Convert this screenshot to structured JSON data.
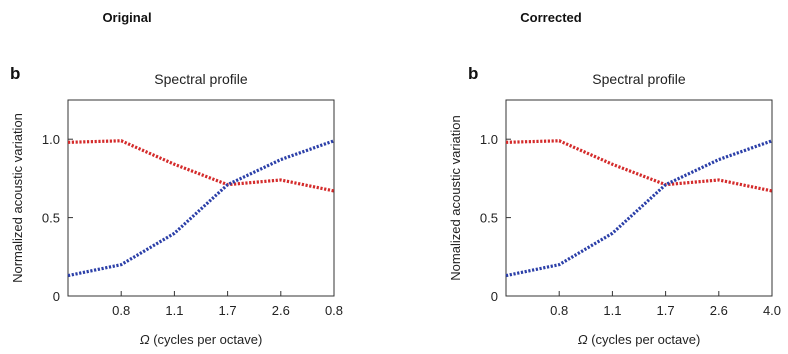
{
  "panels": [
    {
      "heading": "Original",
      "letter": "b",
      "chart_data": {
        "type": "line",
        "title": "Spectral profile",
        "xlabel": "(cycles per octave)",
        "xlabel_symbol": "Ω",
        "ylabel": "Normalized acoustic variation",
        "categories": [
          "",
          "0.8",
          "1.1",
          "1.7",
          "2.6",
          "0.8"
        ],
        "yticks": [
          "0",
          "0.5",
          "1.0"
        ],
        "ytick_values": [
          0,
          0.5,
          1.0
        ],
        "ylim": [
          0,
          1.25
        ],
        "series": [
          {
            "color": "#d42b2b",
            "values": [
              0.98,
              0.99,
              0.84,
              0.71,
              0.74,
              0.67
            ]
          },
          {
            "color": "#2b3fa8",
            "values": [
              0.13,
              0.2,
              0.4,
              0.71,
              0.87,
              0.99
            ]
          }
        ]
      }
    },
    {
      "heading": "Corrected",
      "letter": "b",
      "chart_data": {
        "type": "line",
        "title": "Spectral profile",
        "xlabel": "(cycles per octave)",
        "xlabel_symbol": "Ω",
        "ylabel": "Nomalized acoustic variation",
        "categories": [
          "",
          "0.8",
          "1.1",
          "1.7",
          "2.6",
          "4.0"
        ],
        "yticks": [
          "0",
          "0.5",
          "1.0"
        ],
        "ytick_values": [
          0,
          0.5,
          1.0
        ],
        "ylim": [
          0,
          1.25
        ],
        "series": [
          {
            "color": "#d42b2b",
            "values": [
              0.98,
              0.99,
              0.84,
              0.71,
              0.74,
              0.67
            ]
          },
          {
            "color": "#2b3fa8",
            "values": [
              0.13,
              0.2,
              0.4,
              0.71,
              0.87,
              0.99
            ]
          }
        ]
      }
    }
  ]
}
